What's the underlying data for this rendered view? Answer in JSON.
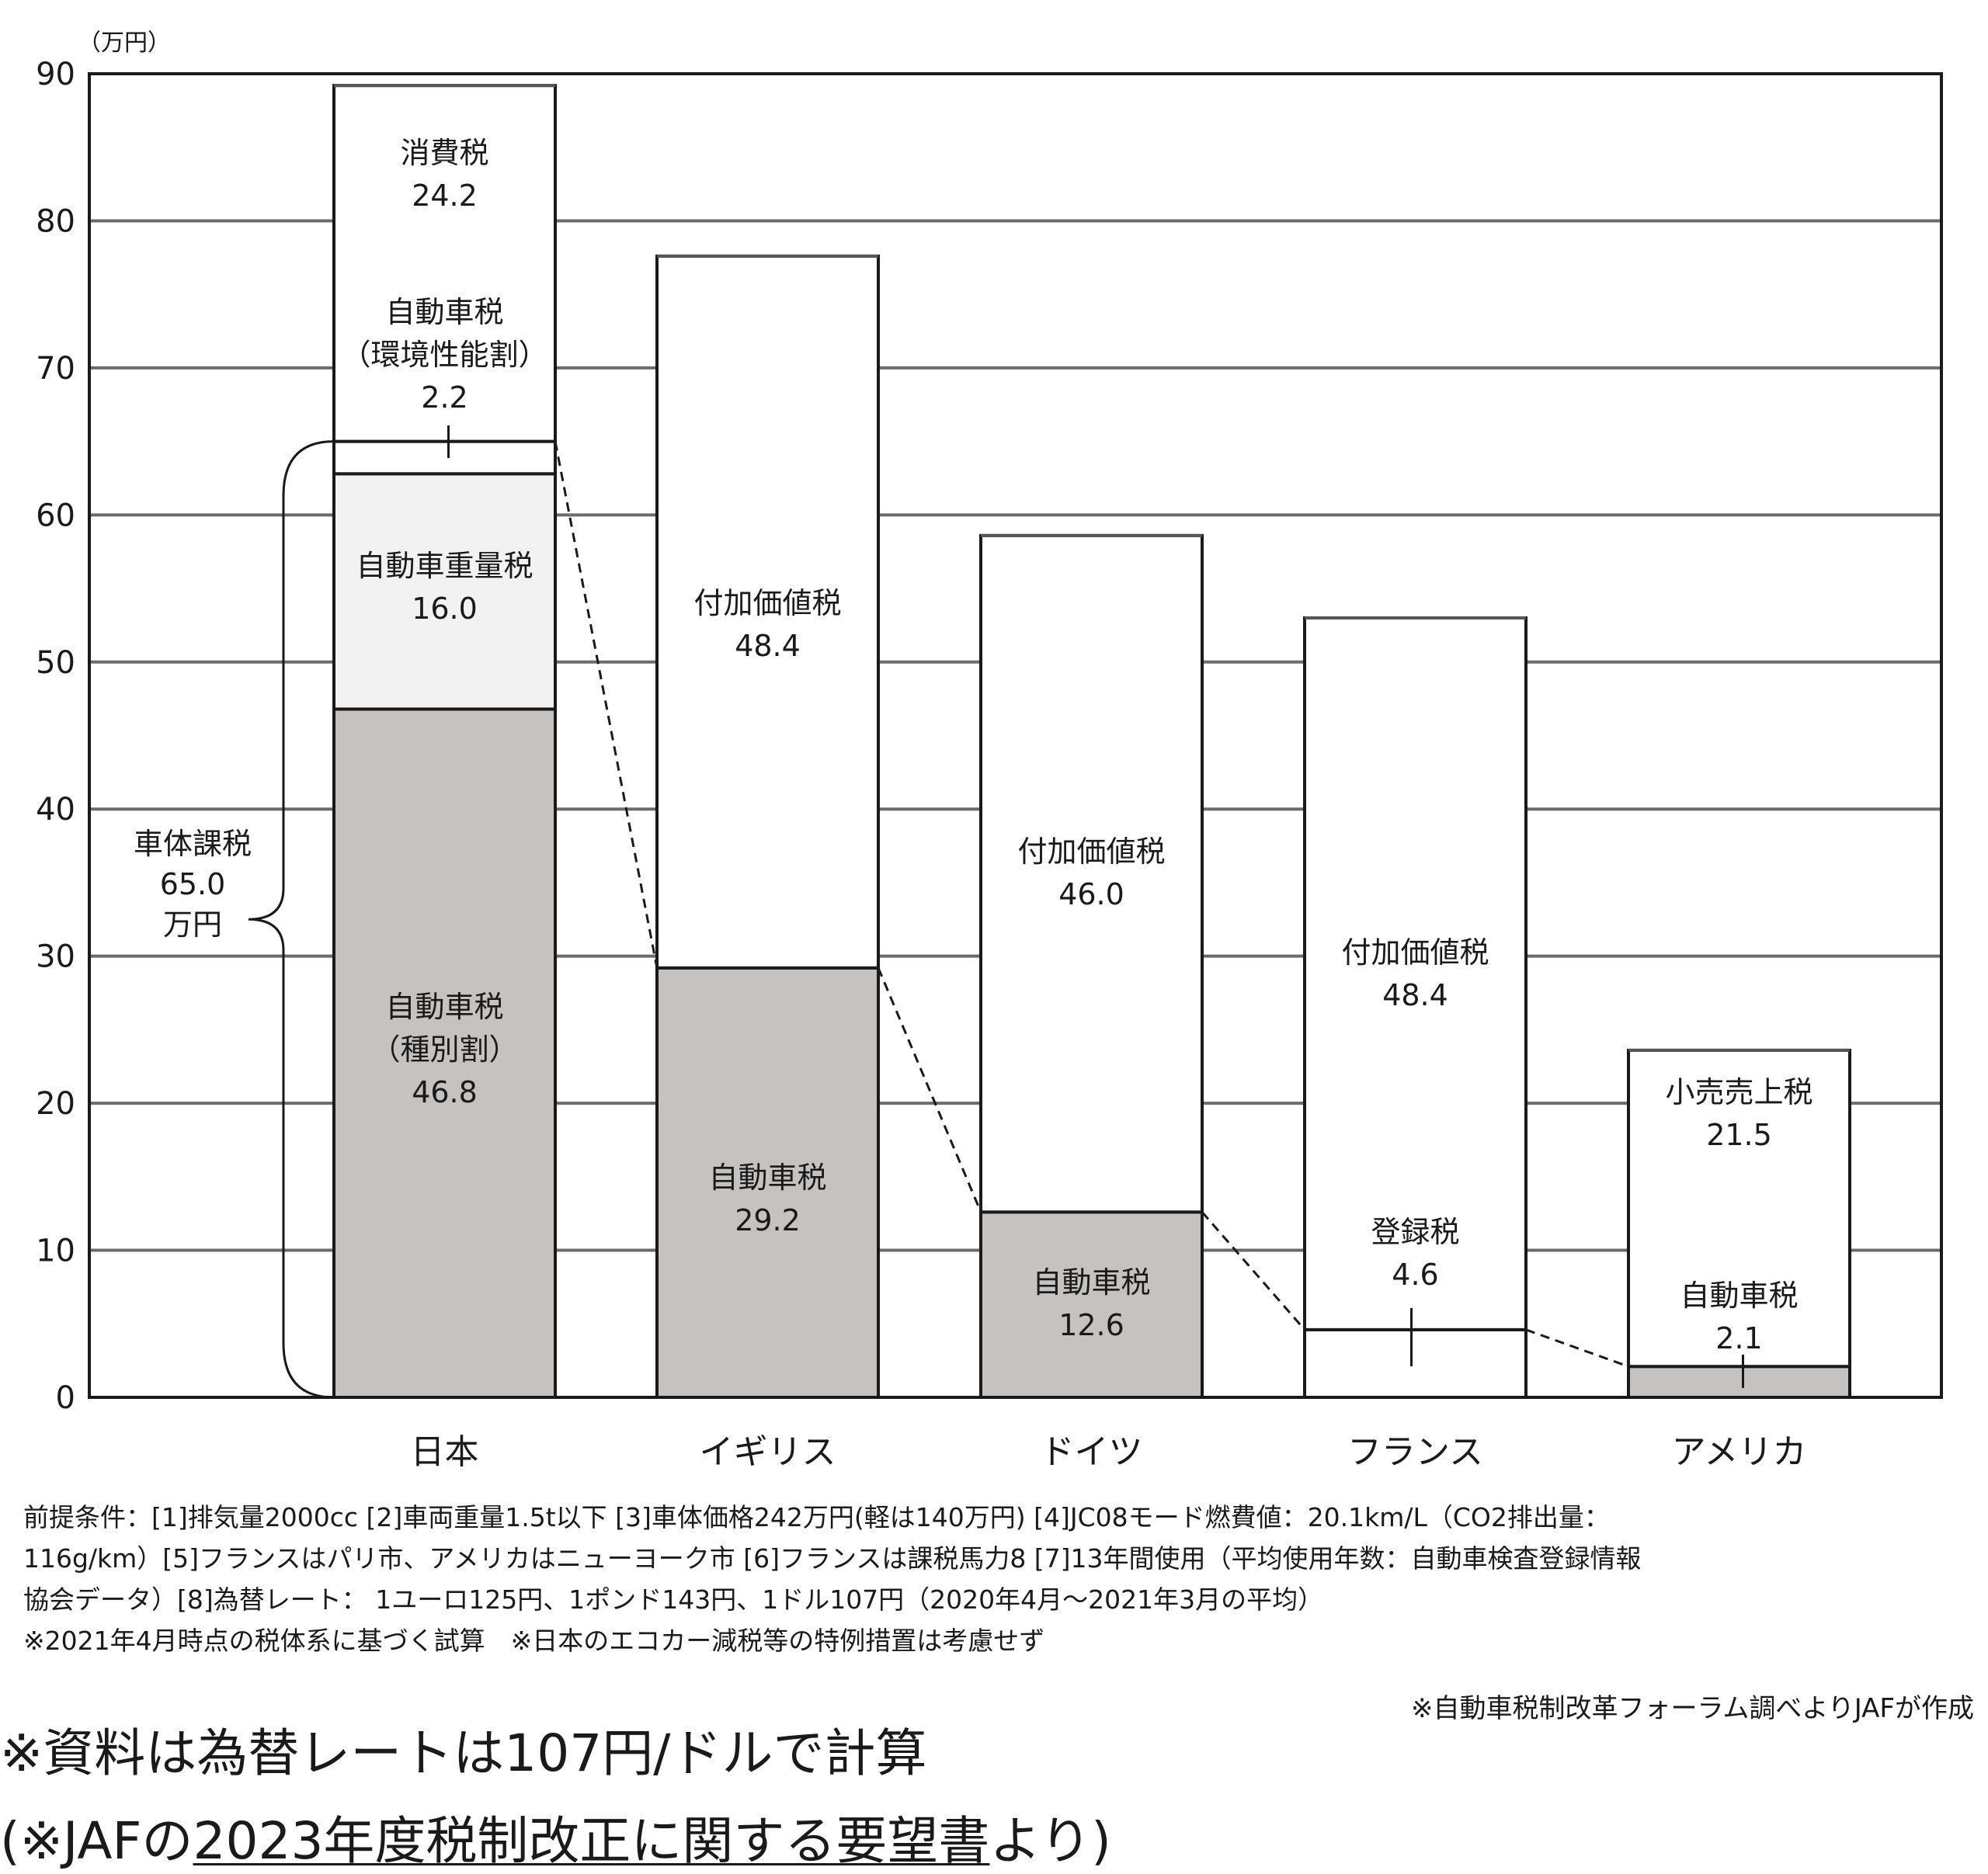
{
  "chart_data": {
    "type": "bar",
    "stacked": true,
    "ylabel": "（万円）",
    "ylim": [
      0,
      90
    ],
    "yticks": [
      0,
      10,
      20,
      30,
      40,
      50,
      60,
      70,
      80,
      90
    ],
    "grid": true,
    "categories": [
      "日本",
      "イギリス",
      "ドイツ",
      "フランス",
      "アメリカ"
    ],
    "bars": [
      {
        "category": "日本",
        "total": 89.2,
        "segments": [
          {
            "name": "自動車税（種別割）",
            "lines": [
              "自動車税",
              "（種別割）",
              "46.8"
            ],
            "value": 46.8,
            "fill": "#c6c2bf"
          },
          {
            "name": "自動車重量税",
            "lines": [
              "自動車重量税",
              "16.0"
            ],
            "value": 16.0,
            "fill": "#f2f2f2"
          },
          {
            "name": "自動車税（環境性能割）",
            "lines": [
              "自動車税",
              "（環境性能割）",
              "2.2"
            ],
            "value": 2.2,
            "fill": "#ffffff"
          },
          {
            "name": "消費税",
            "lines": [
              "消費税",
              "24.2"
            ],
            "value": 24.2,
            "fill": "#ffffff"
          }
        ]
      },
      {
        "category": "イギリス",
        "total": 77.6,
        "segments": [
          {
            "name": "自動車税",
            "lines": [
              "自動車税",
              "29.2"
            ],
            "value": 29.2,
            "fill": "#c6c2bf"
          },
          {
            "name": "付加価値税",
            "lines": [
              "付加価値税",
              "48.4"
            ],
            "value": 48.4,
            "fill": "#ffffff"
          }
        ]
      },
      {
        "category": "ドイツ",
        "total": 58.6,
        "segments": [
          {
            "name": "自動車税",
            "lines": [
              "自動車税",
              "12.6"
            ],
            "value": 12.6,
            "fill": "#c6c2bf"
          },
          {
            "name": "付加価値税",
            "lines": [
              "付加価値税",
              "46.0"
            ],
            "value": 46.0,
            "fill": "#ffffff"
          }
        ]
      },
      {
        "category": "フランス",
        "total": 53.0,
        "segments": [
          {
            "name": "登録税",
            "lines": [
              "登録税",
              "4.6"
            ],
            "value": 4.6,
            "fill": "#ffffff"
          },
          {
            "name": "付加価値税",
            "lines": [
              "付加価値税",
              "48.4"
            ],
            "value": 48.4,
            "fill": "#ffffff"
          }
        ]
      },
      {
        "category": "アメリカ",
        "total": 23.6,
        "segments": [
          {
            "name": "自動車税",
            "lines": [
              "自動車税",
              "2.1"
            ],
            "value": 2.1,
            "fill": "#c6c2bf"
          },
          {
            "name": "小売売上税",
            "lines": [
              "小売売上税",
              "21.5"
            ],
            "value": 21.5,
            "fill": "#ffffff"
          }
        ]
      }
    ],
    "brace_label": [
      "車体課税",
      "65.0",
      "万円"
    ]
  },
  "notes": [
    "前提条件：[1]排気量2000cc [2]車両重量1.5t以下 [3]車体価格242万円(軽は140万円) [4]JC08モード燃費値：20.1km/L（CO2排出量：",
    "116g/km）[5]フランスはパリ市、アメリカはニューヨーク市 [6]フランスは課税馬力8 [7]13年間使用（平均使用年数：自動車検査登録情報",
    "協会データ）[8]為替レート： 1ユーロ125円、1ポンド143円、1ドル107円（2020年4月～2021年3月の平均）",
    "※2021年4月時点の税体系に基づく試算　※日本のエコカー減税等の特例措置は考慮せず"
  ],
  "credit": "※自動車税制改革フォーラム調べよりJAFが作成",
  "footnote1": "※資料は為替レートは107円/ドルで計算",
  "footnote2": {
    "prefix": "(※JAFの",
    "link": "2023年度税制改正に関する要望書",
    "suffix": "より)"
  }
}
